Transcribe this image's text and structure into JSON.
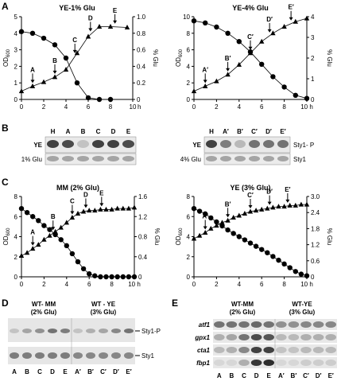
{
  "panel_letters": {
    "a": "A",
    "b": "B",
    "c": "C",
    "d": "D",
    "e": "E"
  },
  "chart_data": [
    {
      "type": "line",
      "title": "YE-1% Glu",
      "xlabel": "h",
      "ylabel_left": "OD600",
      "ylabel_right": "% Glu",
      "xlim": [
        0,
        10
      ],
      "ylim_left": [
        0,
        5
      ],
      "ylim_right": [
        0,
        1.0
      ],
      "x_ticks": [
        "0",
        "2",
        "4",
        "6",
        "8",
        "10"
      ],
      "y_left_ticks": [
        "0",
        "1",
        "2",
        "3",
        "4",
        "5"
      ],
      "y_right_ticks": [
        "0",
        "0.2",
        "0.4",
        "0.6",
        "0.8",
        "1.0"
      ],
      "series": [
        {
          "marker": "triangle",
          "axis": "left",
          "x": [
            0,
            1,
            2,
            3,
            4,
            5,
            6,
            7,
            8,
            9.5
          ],
          "y": [
            0.5,
            0.8,
            1.05,
            1.35,
            1.8,
            2.8,
            3.8,
            4.4,
            4.4,
            4.35
          ]
        },
        {
          "marker": "circle",
          "axis": "right",
          "x": [
            0,
            1,
            2,
            3,
            4,
            5,
            6,
            7,
            8
          ],
          "y": [
            0.82,
            0.8,
            0.74,
            0.66,
            0.5,
            0.2,
            0.02,
            0.0,
            0.0
          ]
        }
      ],
      "arrows": [
        {
          "label": "A",
          "x": 1
        },
        {
          "label": "B",
          "x": 3
        },
        {
          "label": "C",
          "x": 4.8
        },
        {
          "label": "D",
          "x": 6.2
        },
        {
          "label": "E",
          "x": 8.4
        }
      ]
    },
    {
      "type": "line",
      "title": "YE-4% Glu",
      "xlabel": "h",
      "ylabel_left": "OD600",
      "ylabel_right": "% Glu",
      "xlim": [
        0,
        10
      ],
      "ylim_left": [
        0,
        10
      ],
      "ylim_right": [
        0,
        4
      ],
      "x_ticks": [
        "0",
        "2",
        "4",
        "6",
        "8",
        "10 h"
      ],
      "y_left_ticks": [
        "0",
        "2",
        "4",
        "6",
        "8",
        "10"
      ],
      "y_right_ticks": [
        "0",
        "1",
        "2",
        "3",
        "4"
      ],
      "series": [
        {
          "marker": "triangle",
          "axis": "left",
          "x": [
            0,
            1,
            2,
            3,
            4,
            5,
            6,
            7,
            8,
            9,
            10
          ],
          "y": [
            1,
            1.6,
            2.2,
            3,
            4.2,
            5.6,
            7,
            8,
            8.8,
            9.4,
            9.8
          ]
        },
        {
          "marker": "circle",
          "axis": "right",
          "x": [
            0,
            1,
            2,
            3,
            4,
            5,
            6,
            7,
            8,
            9,
            10
          ],
          "y": [
            3.8,
            3.7,
            3.5,
            3.2,
            2.8,
            2.3,
            1.7,
            1.1,
            0.6,
            0.2,
            0.05
          ]
        }
      ],
      "arrows": [
        {
          "label": "A′",
          "x": 1
        },
        {
          "label": "B′",
          "x": 3
        },
        {
          "label": "C′",
          "x": 5
        },
        {
          "label": "D′",
          "x": 6.7
        },
        {
          "label": "E′",
          "x": 8.6
        }
      ]
    },
    {
      "type": "line",
      "title": "MM (2% Glu)",
      "xlabel": "h",
      "ylabel_left": "OD600",
      "ylabel_right": "% Glu",
      "xlim": [
        0,
        10
      ],
      "ylim_left": [
        0,
        8
      ],
      "ylim_right": [
        0,
        1.6
      ],
      "x_ticks": [
        "0",
        "2",
        "4",
        "6",
        "8",
        "10 h"
      ],
      "y_left_ticks": [
        "0",
        "2",
        "4",
        "6",
        "8"
      ],
      "y_right_ticks": [
        "0",
        "0.4",
        "0.8",
        "1.2",
        "1.6"
      ],
      "series": [
        {
          "marker": "triangle",
          "axis": "left",
          "x": [
            0,
            0.5,
            1,
            1.5,
            2,
            2.5,
            3,
            3.5,
            4,
            4.5,
            5,
            5.5,
            6,
            6.5,
            7,
            7.5,
            8,
            8.5,
            9,
            9.5,
            10
          ],
          "y": [
            2.1,
            2.4,
            2.8,
            3.2,
            3.7,
            4.1,
            4.5,
            4.9,
            5.4,
            5.9,
            6.3,
            6.5,
            6.6,
            6.6,
            6.7,
            6.7,
            6.7,
            6.8,
            6.8,
            6.8,
            6.9
          ]
        },
        {
          "marker": "circle",
          "axis": "right",
          "x": [
            0,
            0.5,
            1,
            1.5,
            2,
            2.5,
            3,
            3.5,
            4,
            4.5,
            5,
            5.5,
            6,
            6.5,
            7,
            7.5,
            8,
            8.5,
            9,
            9.5,
            10
          ],
          "y": [
            1.36,
            1.28,
            1.2,
            1.12,
            1.02,
            0.94,
            0.84,
            0.74,
            0.62,
            0.46,
            0.3,
            0.16,
            0.06,
            0.02,
            0.0,
            0.0,
            0.0,
            0.0,
            0.0,
            0.0,
            0.0
          ]
        }
      ],
      "arrows": [
        {
          "label": "A",
          "x": 1
        },
        {
          "label": "B",
          "x": 2.8
        },
        {
          "label": "C",
          "x": 4.5
        },
        {
          "label": "D",
          "x": 5.7
        },
        {
          "label": "E",
          "x": 7.1
        }
      ]
    },
    {
      "type": "line",
      "title": "YE (3% Glu)",
      "xlabel": "h",
      "ylabel_left": "OD600",
      "ylabel_right": "% Glu",
      "xlim": [
        0,
        10
      ],
      "ylim_left": [
        0,
        8
      ],
      "ylim_right": [
        0,
        3.0
      ],
      "x_ticks": [
        "0",
        "2",
        "4",
        "6",
        "8",
        "10 h"
      ],
      "y_left_ticks": [
        "0",
        "2",
        "4",
        "6",
        "8"
      ],
      "y_right_ticks": [
        "0",
        "0.6",
        "1.2",
        "1.8",
        "2.4",
        "3.0"
      ],
      "series": [
        {
          "marker": "triangle",
          "axis": "left",
          "x": [
            0,
            0.5,
            1,
            1.5,
            2,
            2.5,
            3,
            3.5,
            4,
            4.5,
            5,
            5.5,
            6,
            6.5,
            7,
            7.5,
            8,
            8.5,
            9,
            9.5,
            10
          ],
          "y": [
            3.8,
            4.1,
            4.4,
            4.8,
            5.1,
            5.4,
            5.6,
            5.9,
            6.1,
            6.3,
            6.5,
            6.6,
            6.7,
            6.8,
            6.9,
            7.0,
            7.0,
            7.1,
            7.1,
            7.2,
            7.2
          ]
        },
        {
          "marker": "circle",
          "axis": "right",
          "x": [
            0,
            0.5,
            1,
            1.5,
            2,
            2.5,
            3,
            3.5,
            4,
            4.5,
            5,
            5.5,
            6,
            6.5,
            7,
            7.5,
            8,
            8.5,
            9,
            9.5,
            10
          ],
          "y": [
            2.55,
            2.45,
            2.35,
            2.2,
            2.05,
            1.9,
            1.75,
            1.62,
            1.5,
            1.38,
            1.26,
            1.14,
            1.02,
            0.9,
            0.76,
            0.62,
            0.48,
            0.34,
            0.2,
            0.1,
            0.04
          ]
        }
      ],
      "arrows": [
        {
          "label": "A′",
          "x": 1
        },
        {
          "label": "B′",
          "x": 3
        },
        {
          "label": "C′",
          "x": 5
        },
        {
          "label": "D′",
          "x": 6.7
        },
        {
          "label": "E′",
          "x": 8.3
        }
      ]
    }
  ],
  "blot_b": {
    "left": {
      "lanes": [
        "H",
        "A",
        "B",
        "C",
        "D",
        "E"
      ],
      "row_labels_left": [
        "YE",
        "1% Glu"
      ],
      "intensity_top": [
        0.85,
        0.8,
        0.2,
        0.85,
        0.85,
        0.8
      ],
      "intensity_bottom": [
        0.35,
        0.35,
        0.35,
        0.35,
        0.35,
        0.35
      ]
    },
    "right": {
      "lanes": [
        "H",
        "A′",
        "B′",
        "C′",
        "D′",
        "E′"
      ],
      "row_labels_left": [
        "YE",
        "4% Glu"
      ],
      "row_labels_right": [
        "Sty1- P",
        "Sty1"
      ],
      "intensity_top": [
        0.85,
        0.55,
        0.25,
        0.6,
        0.6,
        0.6
      ],
      "intensity_bottom": [
        0.35,
        0.35,
        0.35,
        0.35,
        0.35,
        0.35
      ]
    }
  },
  "blot_d": {
    "headers": [
      "WT- MM",
      "(2% Glu)",
      "WT - YE",
      "(3% Glu)"
    ],
    "row_labels": [
      "Sty1-P",
      "Sty1"
    ],
    "lanes": [
      "A",
      "B",
      "C",
      "D",
      "E",
      "A′",
      "B′",
      "C′",
      "D′",
      "E′"
    ],
    "intensity_top": [
      0.2,
      0.35,
      0.45,
      0.6,
      0.55,
      0.2,
      0.3,
      0.35,
      0.5,
      0.6
    ],
    "intensity_bottom": [
      0.55,
      0.55,
      0.55,
      0.55,
      0.55,
      0.5,
      0.5,
      0.5,
      0.5,
      0.5
    ]
  },
  "blot_e": {
    "headers": [
      "WT-MM",
      "(2% Glu)",
      "WT-YE",
      "(3% Glu)"
    ],
    "genes": [
      "atf1",
      "gpx1",
      "cta1",
      "fbp1"
    ],
    "lanes": [
      "A",
      "B",
      "C",
      "D",
      "E",
      "A′",
      "B′",
      "C′",
      "D′",
      "E′"
    ],
    "intensities": [
      [
        0.6,
        0.6,
        0.6,
        0.65,
        0.6,
        0.45,
        0.45,
        0.5,
        0.5,
        0.5
      ],
      [
        0.3,
        0.35,
        0.6,
        0.8,
        0.75,
        0.25,
        0.25,
        0.3,
        0.3,
        0.3
      ],
      [
        0.25,
        0.3,
        0.5,
        0.85,
        0.85,
        0.2,
        0.2,
        0.25,
        0.25,
        0.25
      ],
      [
        0.1,
        0.1,
        0.3,
        0.9,
        0.95,
        0.1,
        0.1,
        0.15,
        0.15,
        0.15
      ]
    ]
  }
}
